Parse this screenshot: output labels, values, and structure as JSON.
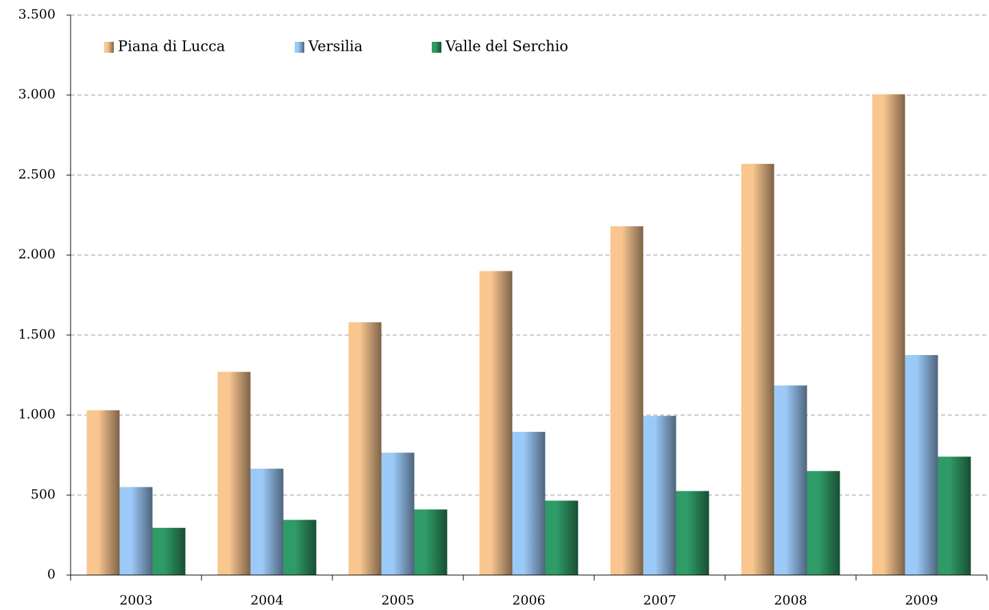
{
  "chart_data": {
    "type": "bar",
    "categories": [
      "2003",
      "2004",
      "2005",
      "2006",
      "2007",
      "2008",
      "2009"
    ],
    "series": [
      {
        "name": "Piana di Lucca",
        "color": "#f9c690",
        "values": [
          1030,
          1270,
          1580,
          1900,
          2180,
          2570,
          3005
        ]
      },
      {
        "name": "Versilia",
        "color": "#9ccaf8",
        "values": [
          550,
          665,
          765,
          895,
          995,
          1185,
          1375
        ]
      },
      {
        "name": "Valle del Serchio",
        "color": "#2f9b66",
        "values": [
          295,
          345,
          410,
          465,
          525,
          650,
          740
        ]
      }
    ],
    "ylim": [
      0,
      3500
    ],
    "yticks": [
      0,
      500,
      {
        "value": 1000,
        "label": "1.000"
      },
      {
        "value": 1500,
        "label": "1.500"
      },
      {
        "value": 2000,
        "label": "2.000"
      },
      {
        "value": 2500,
        "label": "2.500"
      },
      {
        "value": 3000,
        "label": "3.000"
      },
      {
        "value": 3500,
        "label": "3.500"
      }
    ],
    "grid": true,
    "legend": "top-left"
  }
}
